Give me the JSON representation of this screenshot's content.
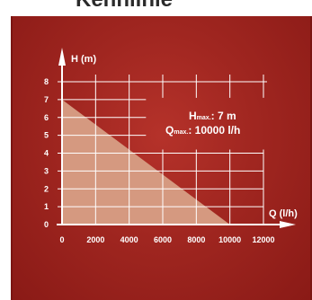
{
  "header": {
    "cropped_text": "Kennlinie"
  },
  "chart_data": {
    "type": "area",
    "xlabel": "Q (l/h)",
    "ylabel": "H (m)",
    "xlim": [
      0,
      12000
    ],
    "ylim": [
      0,
      8
    ],
    "x_ticks": [
      0,
      2000,
      4000,
      6000,
      8000,
      10000,
      12000
    ],
    "y_ticks": [
      0,
      1,
      2,
      3,
      4,
      5,
      6,
      7,
      8
    ],
    "x": [
      0,
      10000
    ],
    "y": [
      7,
      0
    ],
    "grid": true,
    "annotation": {
      "hmax_prefix": "H",
      "hmax_sub": "max.",
      "hmax_value": ": 7 m",
      "qmax_prefix": "Q",
      "qmax_sub": "max.",
      "qmax_value": ": 10000 l/h"
    },
    "colors": {
      "background": "#a02620",
      "fill": "#d59980",
      "axis": "#ffffff"
    }
  }
}
